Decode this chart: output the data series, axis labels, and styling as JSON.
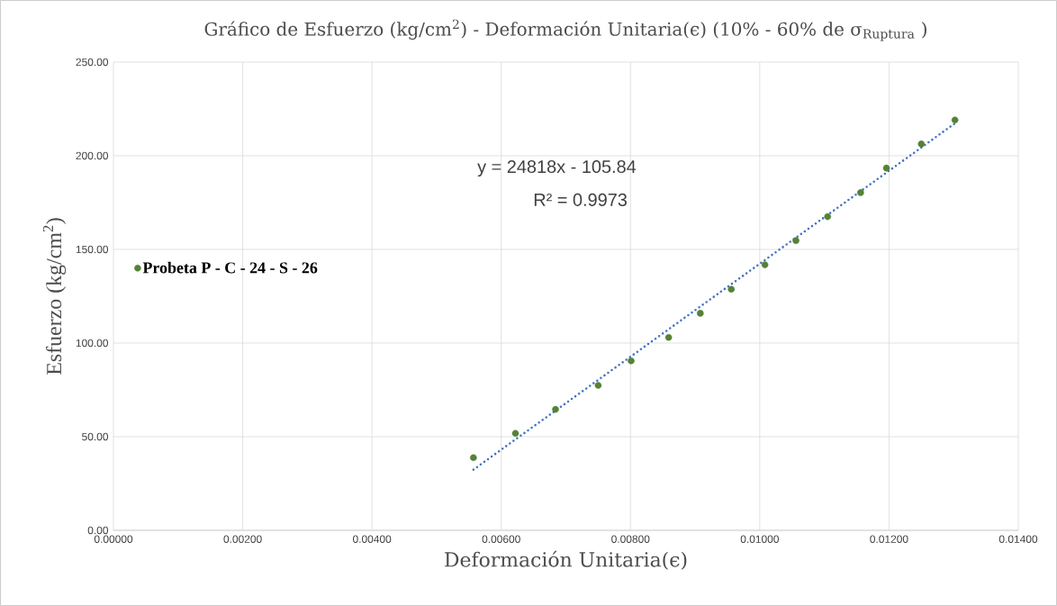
{
  "chart_data": {
    "type": "scatter",
    "title": "Gráfico de Esfuerzo (kg/cm$^{2}$) - Deformación Unitaria(ϵ) (10% - 60% de σ$_{Ruptura}$ )",
    "xlabel": "Deformación Unitaria(ϵ)",
    "ylabel": "Esfuerzo (kg/cm$^{2}$)",
    "annotations": [
      "y = 24818x - 105.84",
      "R² = 0.9973"
    ],
    "xlim": [
      0,
      0.014
    ],
    "ylim": [
      0,
      250
    ],
    "xticks": [
      {
        "value": 0,
        "label": "0.00000"
      },
      {
        "value": 0.002,
        "label": "0.00200"
      },
      {
        "value": 0.004,
        "label": "0.00400"
      },
      {
        "value": 0.006,
        "label": "0.00600"
      },
      {
        "value": 0.008,
        "label": "0.00800"
      },
      {
        "value": 0.01,
        "label": "0.01000"
      },
      {
        "value": 0.012,
        "label": "0.01200"
      },
      {
        "value": 0.014,
        "label": "0.01400"
      }
    ],
    "yticks": [
      {
        "value": 0,
        "label": "0.00"
      },
      {
        "value": 50,
        "label": "50.00"
      },
      {
        "value": 100,
        "label": "100.00"
      },
      {
        "value": 150,
        "label": "150.00"
      },
      {
        "value": 200,
        "label": "200.00"
      },
      {
        "value": 250,
        "label": "250.00"
      }
    ],
    "grid": true,
    "legend": "left",
    "series": [
      {
        "name": "Probeta  P - C - 24 - S - 26",
        "marker": "circle",
        "color": "#548235",
        "x": [
          0.00557,
          0.00622,
          0.00684,
          0.0075,
          0.00801,
          0.00859,
          0.00908,
          0.00956,
          0.01008,
          0.01056,
          0.01105,
          0.01156,
          0.01196,
          0.0125,
          0.01302
        ],
        "values": [
          38.8,
          51.8,
          64.6,
          77.4,
          90.5,
          103.0,
          115.9,
          128.7,
          141.8,
          154.7,
          167.5,
          180.3,
          193.4,
          206.3,
          219.1
        ]
      },
      {
        "type": "line",
        "color": "#4472c4",
        "line_style": "dotted",
        "marker": "none",
        "x": [
          0.00557,
          0.01302
        ],
        "values": [
          32.4,
          217.3
        ]
      }
    ]
  }
}
